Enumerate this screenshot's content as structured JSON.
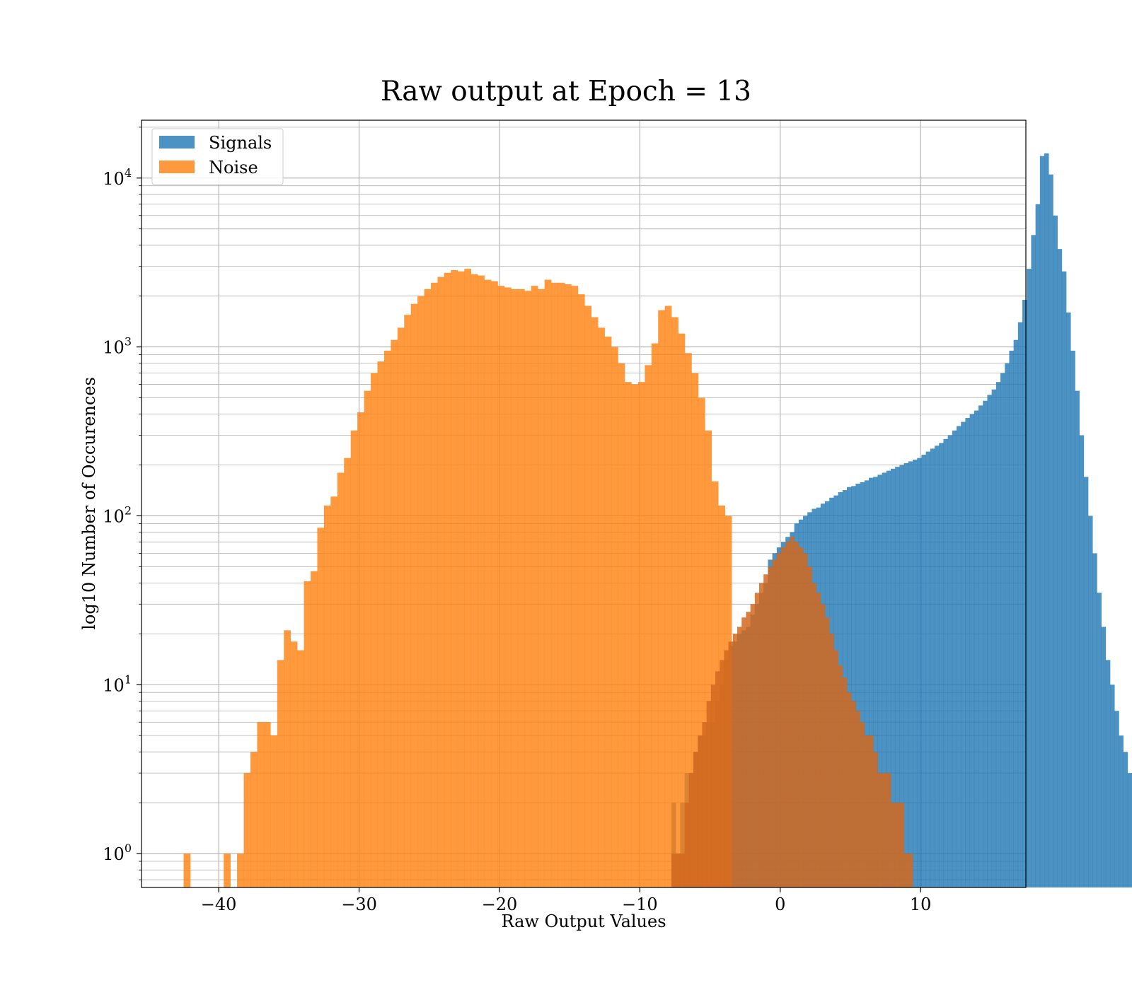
{
  "chart_data": {
    "type": "histogram",
    "title": "Raw output at Epoch = 13",
    "xlabel": "Raw Output Values",
    "ylabel": "log10 Number of Occurences",
    "yscale": "log",
    "xlim": [
      -45.5,
      17.5
    ],
    "ylim": [
      0.63,
      22000
    ],
    "grid": true,
    "legend_position": "top-left",
    "x_ticks": [
      {
        "value": -40,
        "label": "−40"
      },
      {
        "value": -30,
        "label": "−30"
      },
      {
        "value": -20,
        "label": "−20"
      },
      {
        "value": -10,
        "label": "−10"
      },
      {
        "value": 0,
        "label": "0"
      },
      {
        "value": 10,
        "label": "10"
      }
    ],
    "y_ticks": [
      {
        "value": 1,
        "base": "10",
        "exp": "0"
      },
      {
        "value": 10,
        "base": "10",
        "exp": "1"
      },
      {
        "value": 100,
        "base": "10",
        "exp": "2"
      },
      {
        "value": 1000,
        "base": "10",
        "exp": "3"
      },
      {
        "value": 10000,
        "base": "10",
        "exp": "4"
      }
    ],
    "series": [
      {
        "name": "Signals",
        "color": "#1f77b4",
        "opacity": 0.8,
        "bin_start": -7.75,
        "bin_width": 0.3125,
        "counts": [
          2,
          1,
          2,
          3,
          3,
          4,
          5,
          5,
          6,
          6,
          8,
          10,
          14,
          17,
          18,
          20,
          21,
          22,
          26,
          30,
          35,
          40,
          55,
          60,
          65,
          70,
          75,
          80,
          90,
          95,
          100,
          105,
          110,
          112,
          118,
          122,
          128,
          132,
          138,
          142,
          148,
          150,
          155,
          158,
          162,
          168,
          170,
          175,
          180,
          185,
          190,
          195,
          200,
          205,
          210,
          215,
          220,
          230,
          240,
          250,
          260,
          270,
          285,
          300,
          320,
          340,
          360,
          380,
          400,
          420,
          450,
          480,
          520,
          560,
          620,
          700,
          800,
          950,
          1100,
          1400,
          1900,
          2900,
          4600,
          7000,
          13500,
          14000,
          10500,
          6000,
          3800,
          2800,
          1600,
          950,
          550,
          300,
          170,
          100,
          60,
          35,
          22,
          14,
          10,
          7,
          5,
          4,
          3,
          2
        ]
      },
      {
        "name": "Noise",
        "color": "#ff7f0e",
        "opacity": 0.8,
        "bin_start": -42.5,
        "bin_width": 0.4761,
        "counts": [
          1,
          0,
          0,
          0,
          0,
          0,
          1,
          0,
          1,
          3,
          4,
          6,
          6,
          5,
          14,
          21,
          18,
          16,
          41,
          47,
          85,
          115,
          130,
          180,
          220,
          320,
          410,
          550,
          700,
          820,
          950,
          1100,
          1300,
          1550,
          1800,
          2000,
          2200,
          2400,
          2600,
          2750,
          2850,
          2800,
          2900,
          2700,
          2650,
          2500,
          2450,
          2300,
          2250,
          2200,
          2200,
          2150,
          2300,
          2200,
          2500,
          2400,
          2400,
          2350,
          2300,
          2050,
          1750,
          1500,
          1300,
          1150,
          1000,
          800,
          620,
          600,
          620,
          780,
          1050,
          1650,
          1750,
          1500,
          1200,
          920,
          700,
          500,
          320,
          160,
          115,
          100
        ]
      },
      {
        "name": "",
        "color": "#d2691e",
        "opacity": 0.85,
        "bin_start": -7.75,
        "bin_width": 0.3125,
        "counts": [
          1,
          1,
          1,
          2,
          3,
          4,
          5,
          6,
          8,
          10,
          12,
          14,
          16,
          18,
          20,
          22,
          25,
          27,
          30,
          35,
          40,
          45,
          50,
          55,
          60,
          65,
          70,
          75,
          70,
          65,
          60,
          50,
          40,
          35,
          30,
          25,
          20,
          16,
          13,
          11,
          9,
          8,
          7,
          6,
          5,
          5,
          4,
          3,
          3,
          3,
          2,
          2,
          2,
          1,
          1
        ]
      }
    ]
  }
}
